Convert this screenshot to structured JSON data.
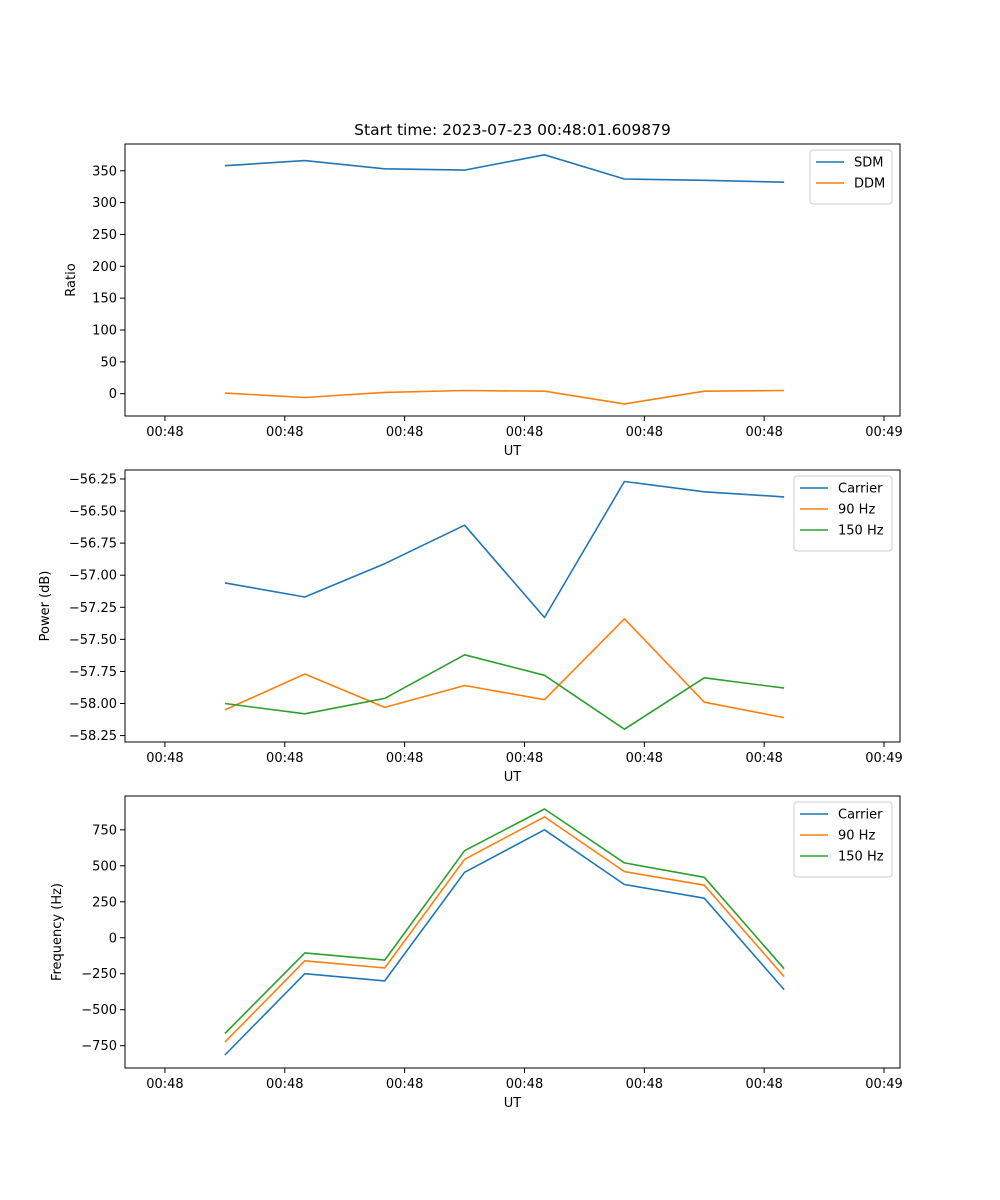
{
  "chart_data": [
    {
      "type": "line",
      "title": "Start time: 2023-07-23 00:48:01.609879",
      "xlabel": "UT",
      "ylabel": "Ratio",
      "xlim": [
        -0.5,
        9.2
      ],
      "ylim": [
        -35,
        392
      ],
      "x_ticks": [
        0,
        1.5,
        3,
        4.5,
        6,
        7.5,
        9
      ],
      "x_tick_labels": [
        "00:48",
        "00:48",
        "00:48",
        "00:48",
        "00:48",
        "00:48",
        "00:49"
      ],
      "y_ticks": [
        0,
        50,
        100,
        150,
        200,
        250,
        300,
        350
      ],
      "y_tick_labels": [
        "0",
        "50",
        "100",
        "150",
        "200",
        "250",
        "300",
        "350"
      ],
      "x": [
        0.75,
        1.75,
        2.75,
        3.75,
        4.75,
        5.75,
        6.75,
        7.75
      ],
      "series": [
        {
          "name": "SDM",
          "color": "#1f77b4",
          "values": [
            358,
            366,
            353,
            351,
            375,
            337,
            335,
            332
          ]
        },
        {
          "name": "DDM",
          "color": "#ff7f0e",
          "values": [
            1,
            -6,
            2,
            5,
            4,
            -16,
            4,
            5
          ]
        }
      ],
      "legend": "upper-right"
    },
    {
      "type": "line",
      "xlabel": "UT",
      "ylabel": "Power (dB)",
      "xlim": [
        -0.5,
        9.2
      ],
      "ylim": [
        -58.3,
        -56.18
      ],
      "x_ticks": [
        0,
        1.5,
        3,
        4.5,
        6,
        7.5,
        9
      ],
      "x_tick_labels": [
        "00:48",
        "00:48",
        "00:48",
        "00:48",
        "00:48",
        "00:48",
        "00:49"
      ],
      "y_ticks": [
        -58.25,
        -58.0,
        -57.75,
        -57.5,
        -57.25,
        -57.0,
        -56.75,
        -56.5,
        -56.25
      ],
      "y_tick_labels": [
        "−58.25",
        "−58.00",
        "−57.75",
        "−57.50",
        "−57.25",
        "−57.00",
        "−56.75",
        "−56.50",
        "−56.25"
      ],
      "x": [
        0.75,
        1.75,
        2.75,
        3.75,
        4.75,
        5.75,
        6.75,
        7.75
      ],
      "series": [
        {
          "name": "Carrier",
          "color": "#1f77b4",
          "values": [
            -57.06,
            -57.17,
            -56.91,
            -56.61,
            -57.33,
            -56.27,
            -56.35,
            -56.39
          ]
        },
        {
          "name": "90 Hz",
          "color": "#ff7f0e",
          "values": [
            -58.05,
            -57.77,
            -58.03,
            -57.86,
            -57.97,
            -57.34,
            -57.99,
            -58.11
          ]
        },
        {
          "name": "150 Hz",
          "color": "#2ca02c",
          "values": [
            -58.0,
            -58.08,
            -57.96,
            -57.62,
            -57.78,
            -58.2,
            -57.8,
            -57.88
          ]
        }
      ],
      "legend": "upper-right"
    },
    {
      "type": "line",
      "xlabel": "UT",
      "ylabel": "Frequency (Hz)",
      "xlim": [
        -0.5,
        9.2
      ],
      "ylim": [
        -905,
        985
      ],
      "x_ticks": [
        0,
        1.5,
        3,
        4.5,
        6,
        7.5,
        9
      ],
      "x_tick_labels": [
        "00:48",
        "00:48",
        "00:48",
        "00:48",
        "00:48",
        "00:48",
        "00:49"
      ],
      "y_ticks": [
        -750,
        -500,
        -250,
        0,
        250,
        500,
        750
      ],
      "y_tick_labels": [
        "−750",
        "−500",
        "−250",
        "0",
        "250",
        "500",
        "750"
      ],
      "x": [
        0.75,
        1.75,
        2.75,
        3.75,
        4.75,
        5.75,
        6.75,
        7.75
      ],
      "series": [
        {
          "name": "Carrier",
          "color": "#1f77b4",
          "values": [
            -815,
            -250,
            -300,
            455,
            750,
            370,
            275,
            -360
          ]
        },
        {
          "name": "90 Hz",
          "color": "#ff7f0e",
          "values": [
            -725,
            -160,
            -210,
            545,
            840,
            460,
            365,
            -270
          ]
        },
        {
          "name": "150 Hz",
          "color": "#2ca02c",
          "values": [
            -665,
            -105,
            -155,
            605,
            895,
            520,
            420,
            -215
          ]
        }
      ],
      "legend": "upper-right"
    }
  ]
}
